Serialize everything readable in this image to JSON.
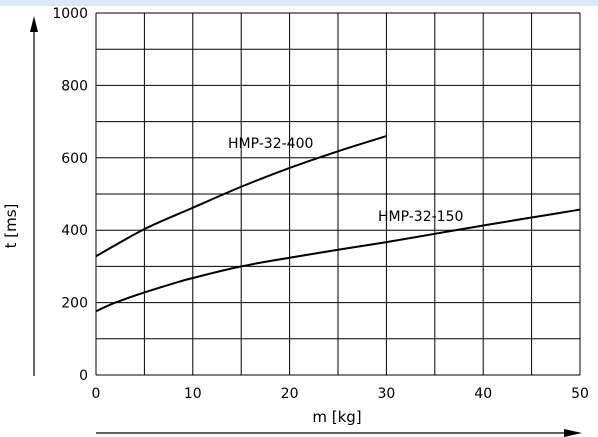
{
  "chart_data": {
    "type": "line",
    "xlabel": "m [kg]",
    "ylabel": "t [ms]",
    "xlim": [
      0,
      50
    ],
    "ylim": [
      0,
      1000
    ],
    "x_ticks": [
      0,
      10,
      20,
      30,
      40,
      50
    ],
    "y_ticks": [
      0,
      200,
      400,
      600,
      800,
      1000
    ],
    "x_grid_step": 5,
    "y_grid_step": 100,
    "grid": true,
    "series": [
      {
        "name": "HMP-32-400",
        "x": [
          0,
          5,
          10,
          15,
          20,
          25,
          30
        ],
        "y": [
          328,
          403,
          462,
          520,
          572,
          618,
          660
        ]
      },
      {
        "name": "HMP-32-150",
        "x": [
          0,
          2,
          5,
          8,
          10,
          15,
          20,
          25,
          30,
          35,
          40,
          45,
          50
        ],
        "y": [
          176,
          200,
          228,
          253,
          268,
          300,
          324,
          346,
          367,
          390,
          413,
          435,
          457
        ]
      }
    ]
  },
  "colors": {
    "line": "#000000",
    "grid": "#000000",
    "top_strip": "#dce8f5"
  }
}
